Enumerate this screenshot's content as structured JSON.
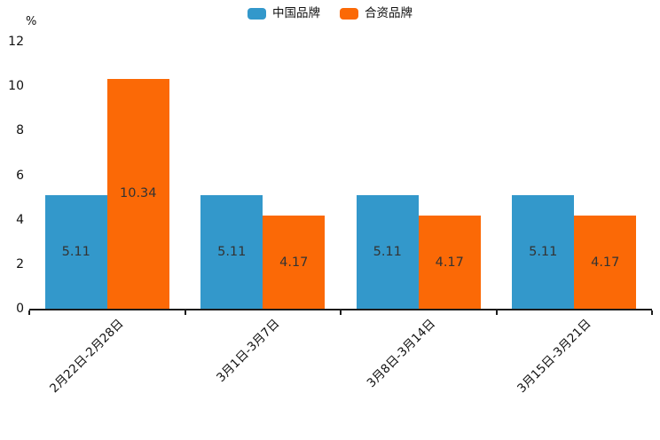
{
  "chart_data": {
    "type": "bar",
    "title": "",
    "xlabel": "",
    "ylabel": "%",
    "categories": [
      "2月22日-2月28日",
      "3月1日-3月7日",
      "3月8日-3月14日",
      "3月15日-3月21日"
    ],
    "series": [
      {
        "name": "中国品牌",
        "color": "#3398cb",
        "values": [
          5.11,
          5.11,
          5.11,
          5.11
        ]
      },
      {
        "name": "合资品牌",
        "color": "#fb6906",
        "values": [
          10.34,
          4.17,
          4.17,
          4.17
        ]
      }
    ],
    "value_labels": {
      "visible": true,
      "position": "center-of-bar",
      "color": "#333333",
      "format": "2dp"
    },
    "ylim": [
      0,
      12
    ],
    "yticks": [
      0,
      2,
      4,
      6,
      8,
      10,
      12
    ],
    "grid": false,
    "legend_position": "top-center",
    "xtick_rotation_degrees": 45,
    "axis_color": "#1c1c1c",
    "text_color": "#111111",
    "background_color": "#ffffff"
  }
}
